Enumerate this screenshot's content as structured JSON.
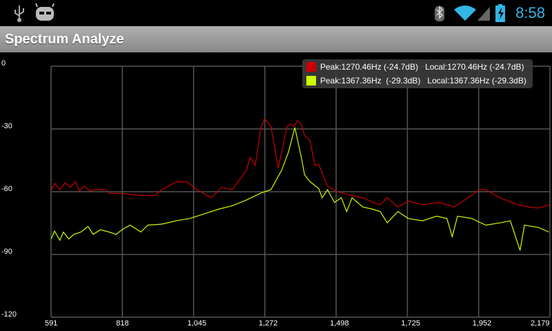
{
  "status_bar": {
    "time": "8:58",
    "icons": [
      "usb-icon",
      "cyanogenmod-icon",
      "bluetooth-icon",
      "wifi-icon",
      "signal-icon",
      "battery-charging-icon"
    ],
    "accent": "#33b5e5"
  },
  "app": {
    "title": "Spectrum Analyze"
  },
  "legend": [
    {
      "color": "#cc0000",
      "text": "Peak:1270.46Hz (-24.7dB)   Local:1270.46Hz (-24.7dB)"
    },
    {
      "color": "#ccff00",
      "text": "Peak:1367.36Hz  (-29.3dB)   Local:1367.36Hz (-29.3dB)"
    }
  ],
  "chart_data": {
    "type": "line",
    "xlim": [
      591,
      2179
    ],
    "ylim": [
      -120,
      0
    ],
    "grid": true,
    "legend_placement": "top-right",
    "x_ticks": [
      "591",
      "818",
      "1,045",
      "1,272",
      "1,498",
      "1,725",
      "1,952",
      "2,179"
    ],
    "y_ticks": [
      "0",
      "-30",
      "-60",
      "-90",
      "-120"
    ],
    "series": [
      {
        "color": "#cc0000",
        "points": [
          [
            591,
            -59.6
          ],
          [
            602,
            -56.0
          ],
          [
            619,
            -59.0
          ],
          [
            636,
            -55.7
          ],
          [
            653,
            -57.9
          ],
          [
            669,
            -55.2
          ],
          [
            681,
            -59.6
          ],
          [
            697,
            -57.4
          ],
          [
            714,
            -59.6
          ],
          [
            731,
            -59.0
          ],
          [
            765,
            -59.0
          ],
          [
            776,
            -60.7
          ],
          [
            821,
            -60.9
          ],
          [
            854,
            -61.5
          ],
          [
            888,
            -61.8
          ],
          [
            921,
            -61.8
          ],
          [
            944,
            -59.0
          ],
          [
            989,
            -55.4
          ],
          [
            1022,
            -55.2
          ],
          [
            1056,
            -59.0
          ],
          [
            1101,
            -62.9
          ],
          [
            1134,
            -57.9
          ],
          [
            1168,
            -59.0
          ],
          [
            1213,
            -49.7
          ],
          [
            1224,
            -43.6
          ],
          [
            1241,
            -47.5
          ],
          [
            1258,
            -29.9
          ],
          [
            1271,
            -25.0
          ],
          [
            1291,
            -28.8
          ],
          [
            1314,
            -48.6
          ],
          [
            1330,
            -37.6
          ],
          [
            1342,
            -28.8
          ],
          [
            1353,
            -27.7
          ],
          [
            1364,
            -28.8
          ],
          [
            1375,
            -26.0
          ],
          [
            1387,
            -27.7
          ],
          [
            1398,
            -33.2
          ],
          [
            1415,
            -35.4
          ],
          [
            1431,
            -47.5
          ],
          [
            1443,
            -46.9
          ],
          [
            1471,
            -57.4
          ],
          [
            1504,
            -60.1
          ],
          [
            1549,
            -61.8
          ],
          [
            1583,
            -62.9
          ],
          [
            1616,
            -65.1
          ],
          [
            1639,
            -66.2
          ],
          [
            1661,
            -62.9
          ],
          [
            1695,
            -67.3
          ],
          [
            1728,
            -64.5
          ],
          [
            1773,
            -66.2
          ],
          [
            1829,
            -65.1
          ],
          [
            1874,
            -67.3
          ],
          [
            1919,
            -62.9
          ],
          [
            1955,
            -59.0
          ],
          [
            1975,
            -59.0
          ],
          [
            2020,
            -62.9
          ],
          [
            2075,
            -66.2
          ],
          [
            2109,
            -67.3
          ],
          [
            2143,
            -67.8
          ],
          [
            2179,
            -66.2
          ]
        ]
      },
      {
        "color": "#ccff00",
        "points": [
          [
            591,
            -82.6
          ],
          [
            602,
            -78.8
          ],
          [
            619,
            -83.2
          ],
          [
            630,
            -79.3
          ],
          [
            647,
            -82.6
          ],
          [
            664,
            -80.4
          ],
          [
            686,
            -79.3
          ],
          [
            709,
            -76.6
          ],
          [
            725,
            -80.4
          ],
          [
            748,
            -78.2
          ],
          [
            776,
            -79.3
          ],
          [
            798,
            -80.4
          ],
          [
            821,
            -77.7
          ],
          [
            843,
            -76.0
          ],
          [
            877,
            -79.3
          ],
          [
            899,
            -76.0
          ],
          [
            944,
            -75.5
          ],
          [
            989,
            -73.9
          ],
          [
            1033,
            -72.8
          ],
          [
            1078,
            -70.6
          ],
          [
            1123,
            -68.4
          ],
          [
            1168,
            -66.7
          ],
          [
            1213,
            -64.0
          ],
          [
            1258,
            -60.7
          ],
          [
            1291,
            -59.0
          ],
          [
            1325,
            -49.7
          ],
          [
            1347,
            -40.9
          ],
          [
            1367,
            -29.3
          ],
          [
            1387,
            -43.1
          ],
          [
            1398,
            -51.9
          ],
          [
            1415,
            -55.2
          ],
          [
            1443,
            -58.5
          ],
          [
            1454,
            -62.9
          ],
          [
            1471,
            -59.0
          ],
          [
            1493,
            -65.1
          ],
          [
            1515,
            -62.9
          ],
          [
            1532,
            -69.5
          ],
          [
            1549,
            -62.9
          ],
          [
            1583,
            -67.3
          ],
          [
            1616,
            -68.4
          ],
          [
            1639,
            -69.5
          ],
          [
            1661,
            -74.9
          ],
          [
            1695,
            -69.5
          ],
          [
            1728,
            -72.8
          ],
          [
            1773,
            -73.9
          ],
          [
            1818,
            -71.7
          ],
          [
            1851,
            -72.8
          ],
          [
            1868,
            -81.5
          ],
          [
            1885,
            -71.7
          ],
          [
            1930,
            -72.8
          ],
          [
            1975,
            -76.0
          ],
          [
            2020,
            -74.9
          ],
          [
            2053,
            -73.9
          ],
          [
            2084,
            -88.1
          ],
          [
            2098,
            -76.0
          ],
          [
            2143,
            -77.1
          ],
          [
            2176,
            -79.3
          ]
        ]
      }
    ]
  }
}
